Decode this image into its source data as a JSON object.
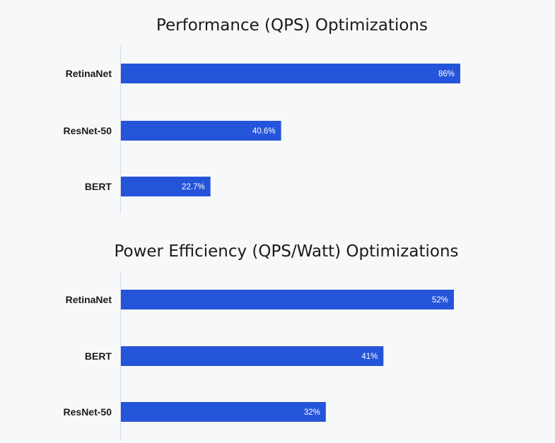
{
  "chart_data": [
    {
      "type": "bar",
      "orientation": "horizontal",
      "title": "Performance (QPS) Optimizations",
      "categories": [
        "RetinaNet",
        "ResNet-50",
        "BERT"
      ],
      "values": [
        86,
        40.6,
        22.7
      ],
      "value_labels": [
        "86%",
        "40.6%",
        "22.7%"
      ],
      "unit": "%",
      "xlim": [
        0,
        100
      ],
      "grid": false,
      "legend": "none",
      "bar_color": "#2454d9"
    },
    {
      "type": "bar",
      "orientation": "horizontal",
      "title": "Power Efficiency (QPS/Watt) Optimizations",
      "categories": [
        "RetinaNet",
        "BERT",
        "ResNet-50"
      ],
      "values": [
        52,
        41,
        32
      ],
      "value_labels": [
        "52%",
        "41%",
        "32%"
      ],
      "unit": "%",
      "xlim": [
        0,
        60
      ],
      "grid": false,
      "legend": "none",
      "bar_color": "#2454d9"
    }
  ],
  "colors": {
    "background": "#f7f8fa",
    "axis": "#d8dbe0",
    "bar": "#2454d9",
    "text": "#1a1a1a",
    "value_text": "#ffffff"
  }
}
